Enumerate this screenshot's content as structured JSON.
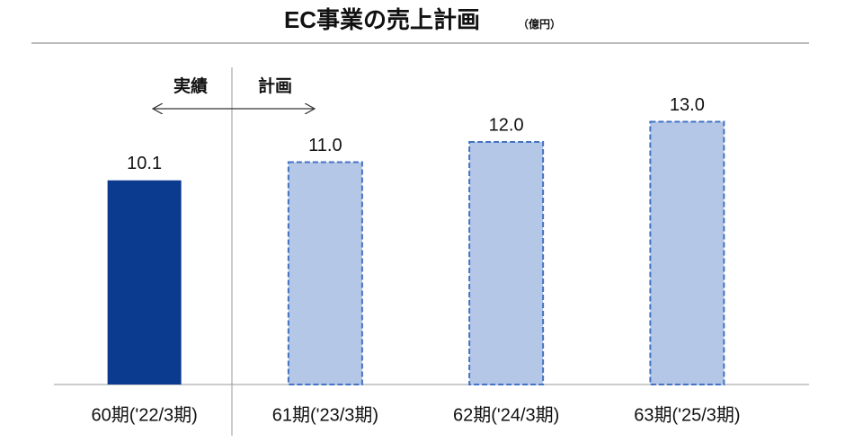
{
  "chart_data": {
    "type": "bar",
    "title": "EC事業の売上計画",
    "subtitle": "（億円）",
    "annotations": [
      "実績",
      "計画"
    ],
    "categories": [
      "60期('22/3期)",
      "61期('23/3期)",
      "62期('24/3期)",
      "63期('25/3期)"
    ],
    "values": [
      10.1,
      11,
      12,
      13
    ],
    "value_labels": [
      "10.1",
      "11.0",
      "12.0",
      "13.0"
    ],
    "colors": [
      "#0b3b8f",
      "#b4c7e7",
      "#b4c7e7",
      "#b4c7e7"
    ],
    "dashed": [
      false,
      true,
      true,
      true
    ],
    "border_color": "#4472c4",
    "ylim": [
      0,
      14
    ]
  }
}
